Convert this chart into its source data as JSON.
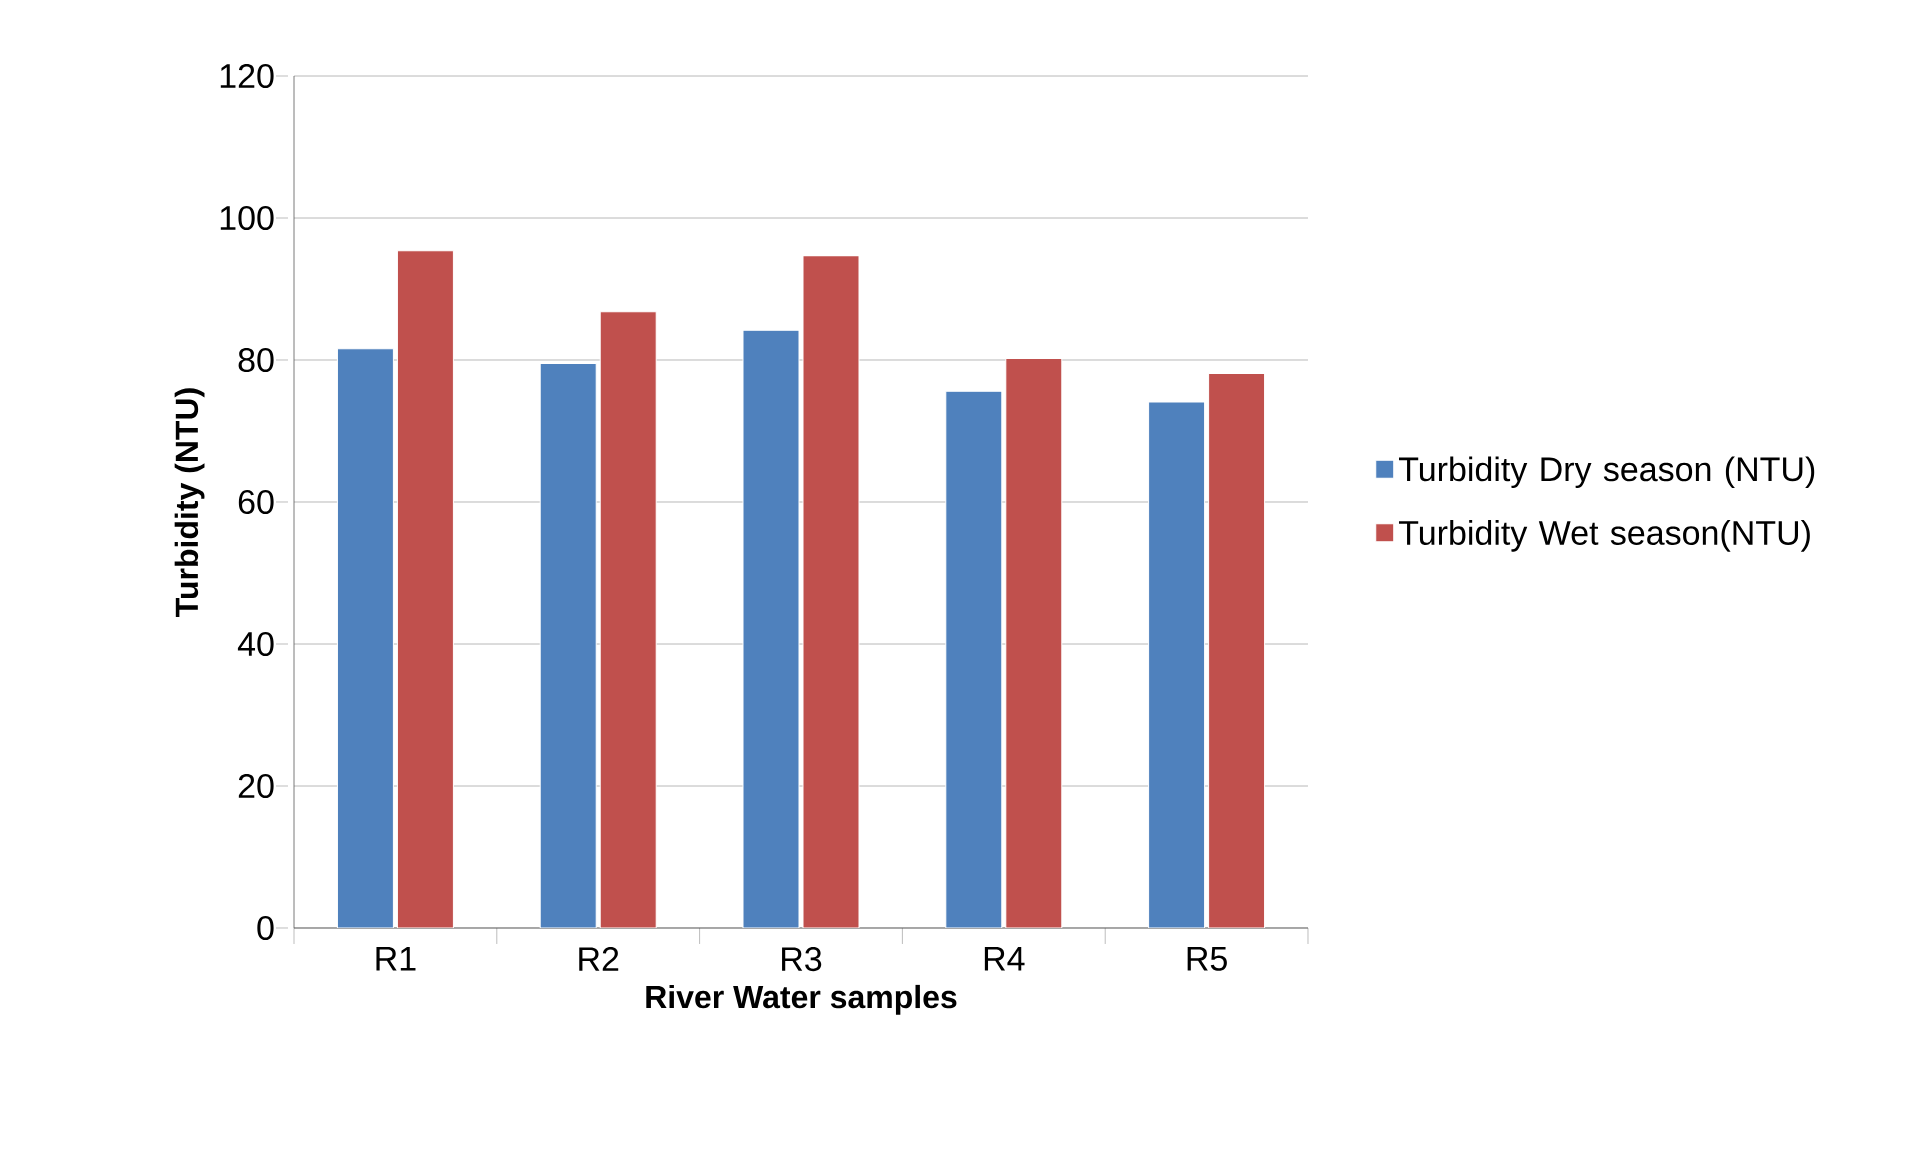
{
  "chart_data": {
    "type": "bar",
    "xlabel": "River Water samples",
    "ylabel": "Turbidity (NTU)",
    "categories": [
      "R1",
      "R2",
      "R3",
      "R4",
      "R5"
    ],
    "series": [
      {
        "name": "Turbidity Dry season (NTU)",
        "color": "#4f81bd",
        "values": [
          81.6,
          79.5,
          84.2,
          75.6,
          74.1
        ]
      },
      {
        "name": "Turbidity  Wet season(NTU)",
        "color": "#c0504d",
        "values": [
          95.4,
          86.8,
          94.7,
          80.2,
          78.1
        ]
      }
    ],
    "ylim": [
      0,
      120
    ],
    "yticks": [
      0,
      20,
      40,
      60,
      80,
      100,
      120
    ],
    "grid": "y",
    "legend": "right"
  }
}
